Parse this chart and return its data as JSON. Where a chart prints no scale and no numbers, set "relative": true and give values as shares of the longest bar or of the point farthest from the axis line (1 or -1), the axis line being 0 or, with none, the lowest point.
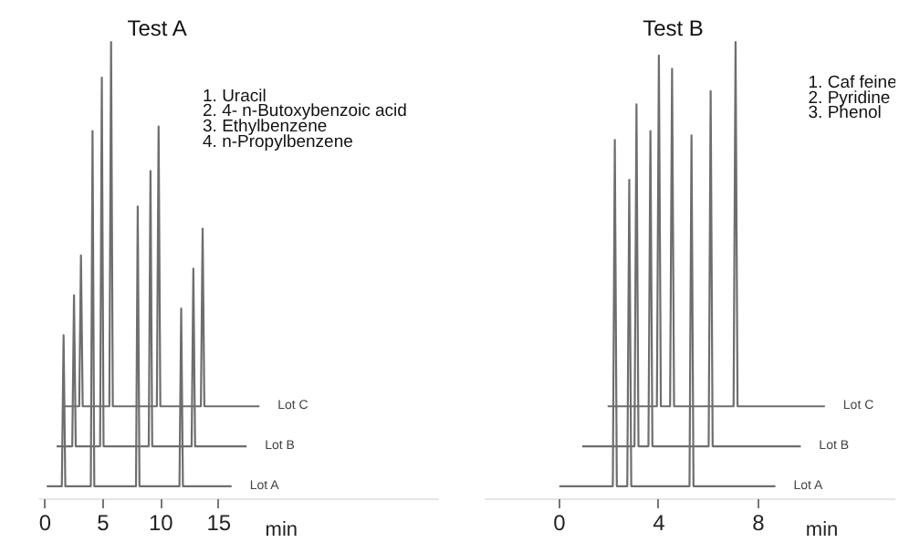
{
  "chart_data": [
    {
      "type": "line",
      "title": "Test A",
      "xlabel": "min",
      "relative": true,
      "xlim": [
        -0.5,
        34
      ],
      "xticks": [
        0,
        5,
        10,
        15
      ],
      "annotations": [
        "1. Uracil",
        "2. 4- n-Butoxybenzoic acid",
        "3. Ethylbenzene",
        "4. n-Propylbenzene"
      ],
      "series": [
        {
          "name": "Lot A",
          "color": "#6e6e6e",
          "x": [
            0.15,
            1.45,
            1.6,
            1.75,
            3.95,
            4.1,
            4.25,
            7.85,
            8.0,
            8.15,
            11.6,
            11.75,
            11.9,
            16.1
          ],
          "values": [
            0,
            0,
            0.34,
            0,
            0,
            0.8,
            0,
            0,
            0.63,
            0,
            0,
            0.4,
            0,
            0
          ]
        },
        {
          "name": "Lot B",
          "color": "#6e6e6e",
          "x": [
            1.0,
            2.35,
            2.5,
            2.65,
            4.75,
            4.9,
            5.05,
            8.95,
            9.1,
            9.25,
            12.65,
            12.8,
            12.95,
            17.4
          ],
          "values": [
            0.09,
            0.09,
            0.43,
            0.09,
            0.09,
            0.92,
            0.09,
            0.09,
            0.71,
            0.09,
            0.09,
            0.49,
            0.09,
            0.09
          ]
        },
        {
          "name": "Lot C",
          "color": "#6e6e6e",
          "x": [
            1.7,
            2.95,
            3.1,
            3.25,
            5.55,
            5.7,
            5.85,
            9.65,
            9.8,
            9.95,
            13.45,
            13.6,
            13.75,
            18.5
          ],
          "values": [
            0.18,
            0.18,
            0.52,
            0.18,
            0.18,
            1,
            0.18,
            0.18,
            0.81,
            0.18,
            0.18,
            0.58,
            0.18,
            0.18
          ]
        }
      ]
    },
    {
      "type": "line",
      "title": "Test B",
      "xlabel": "min",
      "relative": true,
      "xlim": [
        -3,
        13.5
      ],
      "xticks": [
        0,
        4,
        8
      ],
      "annotations": [
        "1. Caf feine",
        "2. Pyridine",
        "3. Phenol"
      ],
      "series": [
        {
          "name": "Lot A",
          "color": "#6e6e6e",
          "x": [
            0,
            2.15,
            2.23,
            2.31,
            2.73,
            2.81,
            2.89,
            5.23,
            5.31,
            5.39,
            8.68
          ],
          "values": [
            0,
            0,
            0.78,
            0,
            0,
            0.69,
            0,
            0,
            0.79,
            0,
            0
          ]
        },
        {
          "name": "Lot B",
          "color": "#6e6e6e",
          "x": [
            0.92,
            3.02,
            3.1,
            3.18,
            3.58,
            3.66,
            3.74,
            6.0,
            6.08,
            6.16,
            9.7
          ],
          "values": [
            0.09,
            0.09,
            0.86,
            0.09,
            0.09,
            0.8,
            0.09,
            0.09,
            0.89,
            0.09,
            0.09
          ]
        },
        {
          "name": "Lot C",
          "color": "#6e6e6e",
          "x": [
            1.94,
            3.92,
            4.0,
            4.08,
            4.45,
            4.53,
            4.61,
            7.0,
            7.08,
            7.16,
            10.67
          ],
          "values": [
            0.18,
            0.18,
            0.97,
            0.18,
            0.18,
            0.94,
            0.18,
            0.18,
            1,
            0.18,
            0.18
          ]
        }
      ]
    }
  ]
}
